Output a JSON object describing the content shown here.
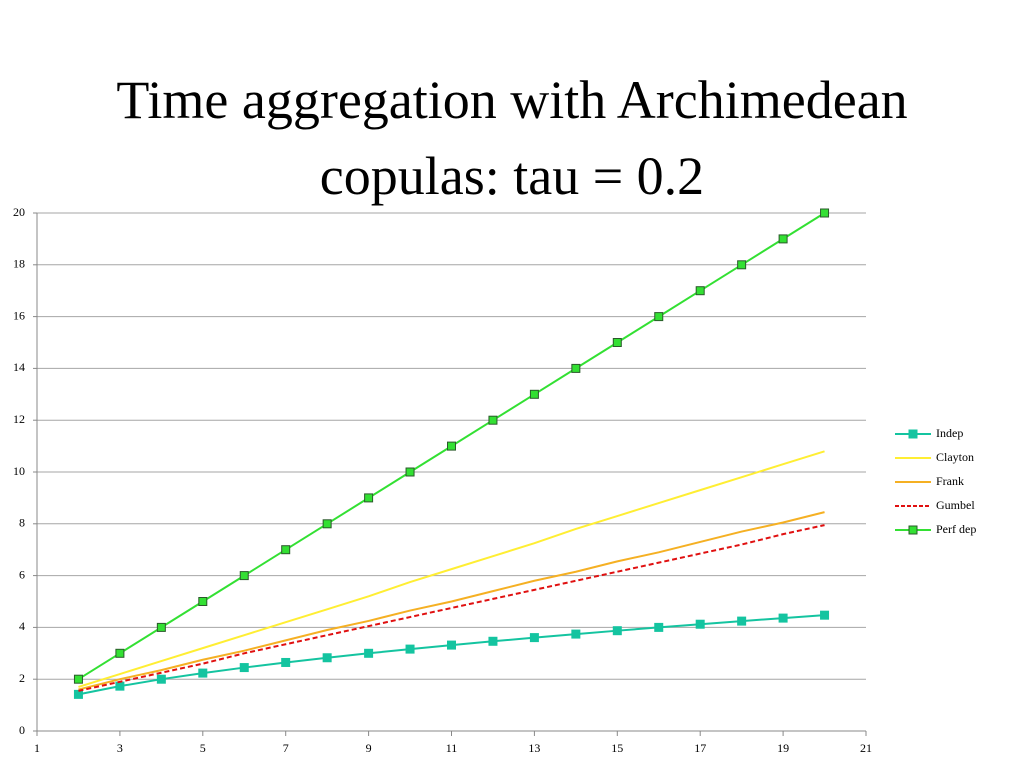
{
  "chart_data": {
    "type": "line",
    "title": "Time aggregation with Archimedean copulas: tau = 0.2",
    "x": [
      2,
      3,
      4,
      5,
      6,
      7,
      8,
      9,
      10,
      11,
      12,
      13,
      14,
      15,
      16,
      17,
      18,
      19,
      20
    ],
    "series": [
      {
        "name": "Indep",
        "color": "#14c4a0",
        "marker": "square",
        "dash": false,
        "values": [
          1.414,
          1.732,
          2,
          2.236,
          2.449,
          2.646,
          2.828,
          3,
          3.162,
          3.317,
          3.464,
          3.606,
          3.742,
          3.873,
          4,
          4.123,
          4.243,
          4.359,
          4.472
        ]
      },
      {
        "name": "Clayton",
        "color": "#ffee33",
        "marker": "none",
        "dash": false,
        "values": [
          1.7,
          2.2,
          2.7,
          3.2,
          3.7,
          4.2,
          4.7,
          5.2,
          5.75,
          6.25,
          6.75,
          7.25,
          7.8,
          8.3,
          8.8,
          9.3,
          9.8,
          10.3,
          10.8
        ]
      },
      {
        "name": "Frank",
        "color": "#f5b023",
        "marker": "none",
        "dash": false,
        "values": [
          1.6,
          2.0,
          2.35,
          2.75,
          3.1,
          3.5,
          3.9,
          4.25,
          4.65,
          5.0,
          5.4,
          5.8,
          6.15,
          6.55,
          6.9,
          7.3,
          7.7,
          8.05,
          8.45
        ]
      },
      {
        "name": "Gumbel",
        "color": "#e01010",
        "marker": "none",
        "dash": true,
        "values": [
          1.55,
          1.9,
          2.25,
          2.6,
          3.0,
          3.35,
          3.7,
          4.05,
          4.4,
          4.75,
          5.1,
          5.45,
          5.8,
          6.15,
          6.5,
          6.85,
          7.2,
          7.6,
          7.95
        ]
      },
      {
        "name": "Perf dep",
        "color": "#33e033",
        "marker": "square",
        "dash": false,
        "values": [
          2,
          3,
          4,
          5,
          6,
          7,
          8,
          9,
          10,
          11,
          12,
          13,
          14,
          15,
          16,
          17,
          18,
          19,
          20
        ]
      }
    ],
    "xlim": [
      1,
      21
    ],
    "xticks": [
      1,
      3,
      5,
      7,
      9,
      11,
      13,
      15,
      17,
      19,
      21
    ],
    "ylim": [
      0,
      20
    ],
    "yticks": [
      0,
      2,
      4,
      6,
      8,
      10,
      12,
      14,
      16,
      18,
      20
    ],
    "grid": true,
    "legend": "right"
  }
}
